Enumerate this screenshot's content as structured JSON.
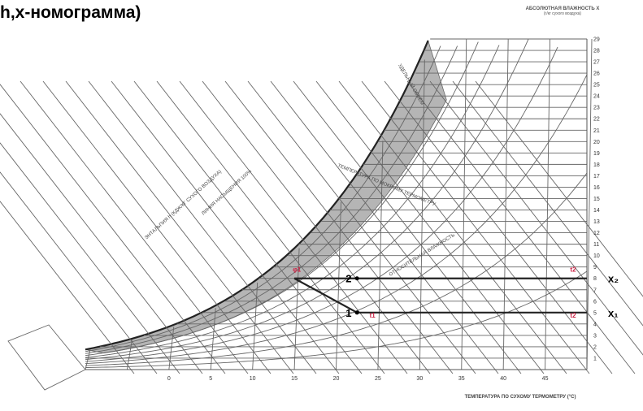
{
  "title": "h,x-номограмма)",
  "top_right": {
    "label": "АБСОЛЮТНАЯ ВЛАЖНОСТЬ X",
    "sub": "(г/кг сухого воздуха)"
  },
  "chart_data": {
    "type": "line",
    "xlabel": "ТЕМПЕРАТУРА ПО СУХОМУ ТЕРМОМЕТРУ (°C)",
    "ylabel": "",
    "x_ticks": [
      "0",
      "5",
      "10",
      "15",
      "20",
      "25",
      "30",
      "35",
      "40",
      "45"
    ],
    "y_ticks": [
      "1",
      "2",
      "3",
      "4",
      "5",
      "6",
      "7",
      "8",
      "9",
      "10",
      "11",
      "12",
      "13",
      "14",
      "15",
      "16",
      "17",
      "18",
      "19",
      "20",
      "21",
      "22",
      "23",
      "24",
      "25",
      "26",
      "27",
      "28",
      "29"
    ],
    "xlim": [
      -10,
      50
    ],
    "ylim": [
      0,
      29
    ],
    "labels": {
      "enthalpy": "ЭНТАЛЬПИЯ h (КДЖ/КГ СУХОГО ВОЗДУХА)",
      "saturation": "ЛИНИЯ НАСЫЩЕНИЯ 100%",
      "rel_humidity": "ОТНОСИТЕЛЬНАЯ ВЛАЖНОСТЬ",
      "wet_bulb": "ТЕМПЕРАТУРА ПО МОКРОМУ ТЕРМОМЕТРУ",
      "density": "УДЕЛЬНЫЙ ОБЪЁМ"
    },
    "points": [
      {
        "name": "2",
        "t": 22.5,
        "x": 8
      },
      {
        "name": "1",
        "t": 22.5,
        "x": 5
      }
    ],
    "process_lines": [
      {
        "from": {
          "t": 15,
          "x": 8
        },
        "to": {
          "t": 50,
          "x": 8
        },
        "label": "x₂"
      },
      {
        "from": {
          "t": 22.5,
          "x": 5
        },
        "to": {
          "t": 50,
          "x": 5
        },
        "label": "x₁"
      },
      {
        "from": {
          "t": 15,
          "x": 8
        },
        "to": {
          "t": 22.5,
          "x": 5
        },
        "label": ""
      }
    ],
    "markers": [
      "φ1",
      "t1",
      "t2",
      "t2"
    ]
  }
}
